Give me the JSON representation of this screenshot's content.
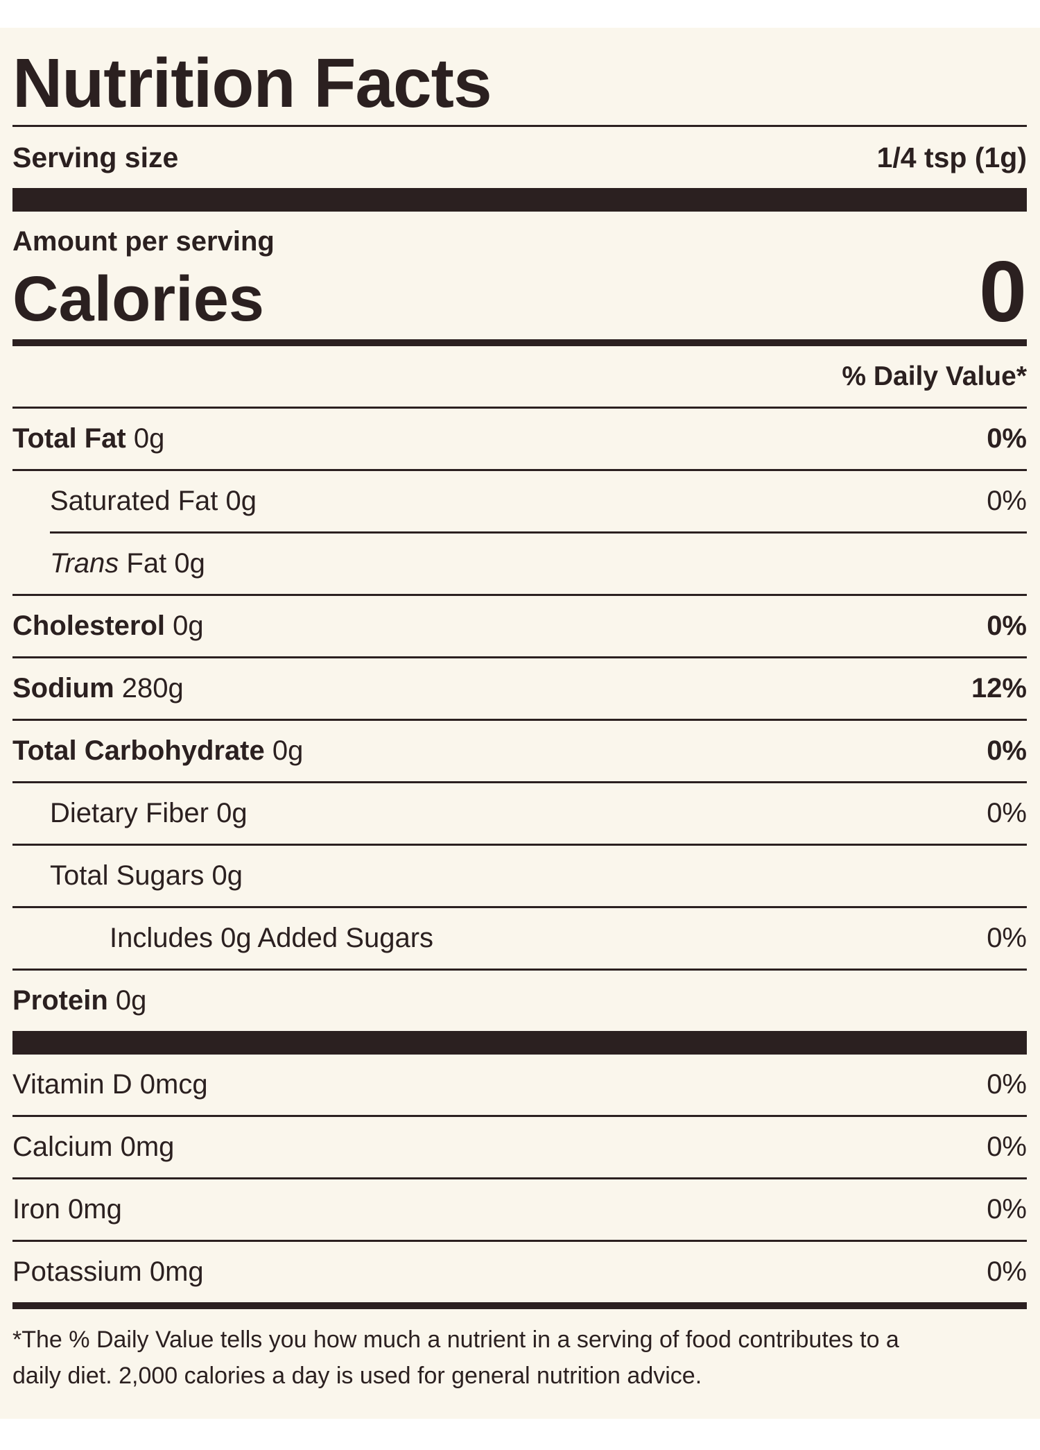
{
  "title": "Nutrition Facts",
  "serving": {
    "label": "Serving size",
    "value": "1/4 tsp (1g)"
  },
  "amount_per_serving": "Amount per serving",
  "calories": {
    "label": "Calories",
    "value": "0"
  },
  "dv_header": "% Daily Value*",
  "nutrients": {
    "total_fat": {
      "name": "Total Fat",
      "amount": "0g",
      "dv": "0%"
    },
    "saturated_fat": {
      "name": "Saturated Fat",
      "amount": "0g",
      "dv": "0%"
    },
    "trans_fat": {
      "name_italic": "Trans",
      "name": "Fat",
      "amount": "0g"
    },
    "cholesterol": {
      "name": "Cholesterol",
      "amount": "0g",
      "dv": "0%"
    },
    "sodium": {
      "name": "Sodium",
      "amount": "280g",
      "dv": "12%"
    },
    "total_carb": {
      "name": "Total Carbohydrate",
      "amount": "0g",
      "dv": "0%"
    },
    "dietary_fiber": {
      "name": "Dietary Fiber",
      "amount": "0g",
      "dv": "0%"
    },
    "total_sugars": {
      "name": "Total Sugars",
      "amount": "0g"
    },
    "added_sugars": {
      "text": "Includes 0g Added Sugars",
      "dv": "0%"
    },
    "protein": {
      "name": "Protein",
      "amount": "0g"
    }
  },
  "vitamins": [
    {
      "text": "Vitamin D 0mcg",
      "dv": "0%"
    },
    {
      "text": "Calcium 0mg",
      "dv": "0%"
    },
    {
      "text": "Iron 0mg",
      "dv": "0%"
    },
    {
      "text": "Potassium 0mg",
      "dv": "0%"
    }
  ],
  "footnote_line1": "*The % Daily Value tells you how much a nutrient in a serving of food contributes to a",
  "footnote_line2": "daily diet. 2,000 calories a day is used for general nutrition advice.",
  "colors": {
    "background": "#faf6ec",
    "ink": "#2b2020"
  }
}
